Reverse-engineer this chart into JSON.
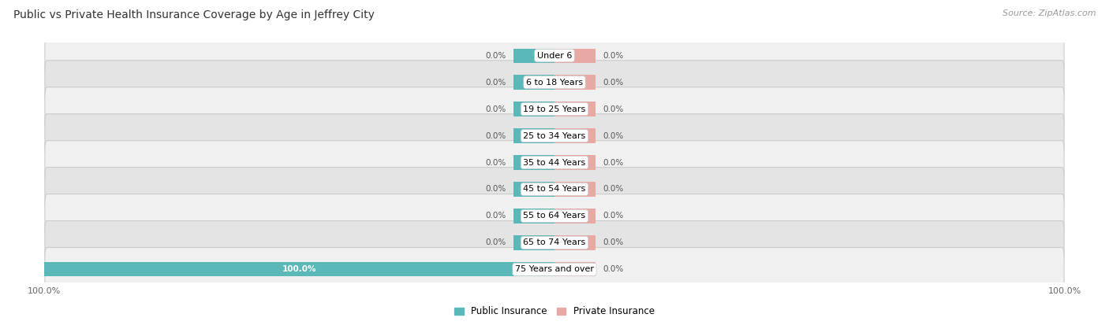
{
  "title": "Public vs Private Health Insurance Coverage by Age in Jeffrey City",
  "source": "Source: ZipAtlas.com",
  "categories": [
    "Under 6",
    "6 to 18 Years",
    "19 to 25 Years",
    "25 to 34 Years",
    "35 to 44 Years",
    "45 to 54 Years",
    "55 to 64 Years",
    "65 to 74 Years",
    "75 Years and over"
  ],
  "public_values": [
    0.0,
    0.0,
    0.0,
    0.0,
    0.0,
    0.0,
    0.0,
    0.0,
    100.0
  ],
  "private_values": [
    0.0,
    0.0,
    0.0,
    0.0,
    0.0,
    0.0,
    0.0,
    0.0,
    0.0
  ],
  "public_color": "#5bb8b8",
  "private_color": "#e8a8a3",
  "public_label": "Public Insurance",
  "private_label": "Private Insurance",
  "axis_min": -100.0,
  "axis_max": 100.0,
  "stub_size": 8.0,
  "title_fontsize": 10,
  "source_fontsize": 8,
  "bar_label_fontsize": 7.5,
  "category_fontsize": 8,
  "axis_label_fontsize": 8,
  "row_bg_light": "#f0f0f0",
  "row_bg_dark": "#e4e4e4",
  "row_gap_color": "#ffffff"
}
